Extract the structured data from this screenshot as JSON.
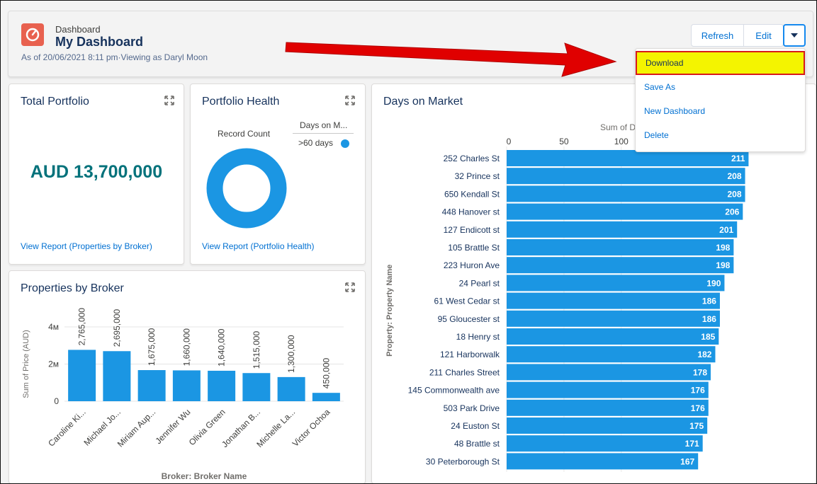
{
  "header": {
    "kicker": "Dashboard",
    "title": "My Dashboard",
    "subtitle": "As of 20/06/2021 8:11 pm·Viewing as Daryl Moon",
    "refresh_label": "Refresh",
    "edit_label": "Edit"
  },
  "menu": {
    "items": [
      "Download",
      "Save As",
      "New Dashboard",
      "Delete"
    ],
    "highlighted": "Download"
  },
  "total_portfolio": {
    "title": "Total Portfolio",
    "value": "AUD 13,700,000",
    "link": "View Report (Properties by Broker)"
  },
  "portfolio_health": {
    "title": "Portfolio Health",
    "center_label": "Record Count",
    "legend_title": "Days on M...",
    "legend_item": ">60 days",
    "link": "View Report (Portfolio Health)"
  },
  "properties_by_broker": {
    "title": "Properties by Broker"
  },
  "days_on_market": {
    "title": "Days on Market"
  },
  "colors": {
    "bar": "#1b96e3",
    "donut": "#1b96e3",
    "link": "#0070d2",
    "title": "#16325c",
    "highlight": "#f4f400",
    "arrow": "#e00000"
  },
  "chart_data": [
    {
      "type": "bar",
      "orientation": "vertical",
      "categories": [
        "Caroline Ki...",
        "Michael Jo...",
        "Miriam Aup...",
        "Jennifer Wu",
        "Olivia Green",
        "Jonathan B...",
        "Michelle La...",
        "Victor Ochoa"
      ],
      "values": [
        2765000,
        2695000,
        1675000,
        1660000,
        1640000,
        1515000,
        1300000,
        450000
      ],
      "data_labels": [
        "2,765,000",
        "2,695,000",
        "1,675,000",
        "1,660,000",
        "1,640,000",
        "1,515,000",
        "1,300,000",
        "450,000"
      ],
      "xlabel": "Broker: Broker Name",
      "ylabel": "Sum of Price (AUD)",
      "yticks": [
        "0",
        "2м",
        "4м"
      ],
      "ytick_values": [
        0,
        2000000,
        4000000
      ],
      "ylim": [
        0,
        4000000
      ],
      "grid": true
    },
    {
      "type": "bar",
      "orientation": "horizontal",
      "categories": [
        "252 Charles St",
        "32 Prince st",
        "650 Kendall St",
        "448 Hanover st",
        "127 Endicott st",
        "105 Brattle St",
        "223 Huron Ave",
        "24 Pearl st",
        "61 West Cedar st",
        "95 Gloucester st",
        "18 Henry st",
        "121 Harborwalk",
        "211 Charles Street",
        "145 Commonwealth ave",
        "503 Park Drive",
        "24 Euston St",
        "48 Brattle st",
        "30 Peterborough St"
      ],
      "values": [
        211,
        208,
        208,
        206,
        201,
        198,
        198,
        190,
        186,
        186,
        185,
        182,
        178,
        176,
        176,
        175,
        171,
        167
      ],
      "xlabel": "Sum of D",
      "ylabel": "Property: Property Name",
      "xticks": [
        "0",
        "50",
        "100"
      ],
      "xtick_values": [
        0,
        50,
        100
      ],
      "grid": true
    },
    {
      "type": "pie",
      "variant": "donut",
      "title": "Record Count",
      "legend_title": "Days on M...",
      "slices": [
        {
          "label": ">60 days",
          "value": 1
        }
      ]
    }
  ]
}
